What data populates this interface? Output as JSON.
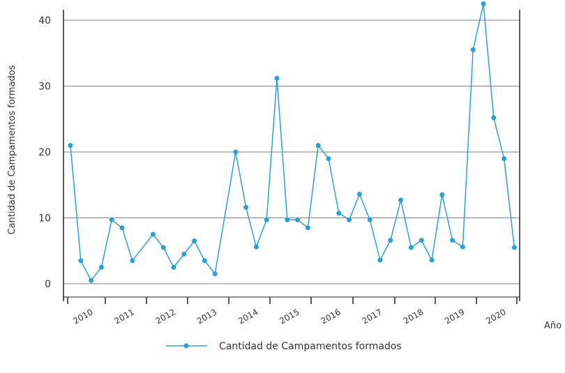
{
  "chart_data": {
    "type": "line",
    "title": "",
    "xlabel": "Año",
    "ylabel": "Cantidad de Campamentos formados",
    "ylim": [
      0,
      40
    ],
    "yticks": [
      0,
      10,
      20,
      30,
      40
    ],
    "grid": "horizontal",
    "legend": "bottom-center",
    "colors": {
      "series": "#2a9fd8",
      "grid": "#808080",
      "axis": "#222222"
    },
    "categories": [
      "2010",
      "2011",
      "2012",
      "2013",
      "2014",
      "2015",
      "2016",
      "2017",
      "2018",
      "2019",
      "2020"
    ],
    "series": [
      {
        "name": "Cantidad de Campamentos formados",
        "x": [
          2010.0,
          2010.25,
          2010.5,
          2010.75,
          2011.0,
          2011.25,
          2011.5,
          2012.0,
          2012.25,
          2012.5,
          2012.75,
          2013.0,
          2013.25,
          2013.5,
          2014.0,
          2014.25,
          2014.5,
          2014.75,
          2015.0,
          2015.25,
          2015.5,
          2015.75,
          2016.0,
          2016.25,
          2016.5,
          2016.75,
          2017.0,
          2017.25,
          2017.5,
          2017.75,
          2018.0,
          2018.25,
          2018.5,
          2018.75,
          2019.0,
          2019.25,
          2019.5,
          2019.75,
          2020.0,
          2020.25,
          2020.5,
          2020.75
        ],
        "values": [
          21,
          3.5,
          0.5,
          2.5,
          9.7,
          8.5,
          3.5,
          7.5,
          5.5,
          2.5,
          4.5,
          6.5,
          3.5,
          1.5,
          20,
          11.6,
          5.6,
          9.7,
          31.2,
          9.7,
          9.7,
          8.5,
          21,
          19,
          10.7,
          9.7,
          13.6,
          9.7,
          3.6,
          6.6,
          12.7,
          5.5,
          6.6,
          3.6,
          13.5,
          6.6,
          5.6,
          35.5,
          42.5,
          25.2,
          19,
          5.5
        ]
      }
    ]
  }
}
